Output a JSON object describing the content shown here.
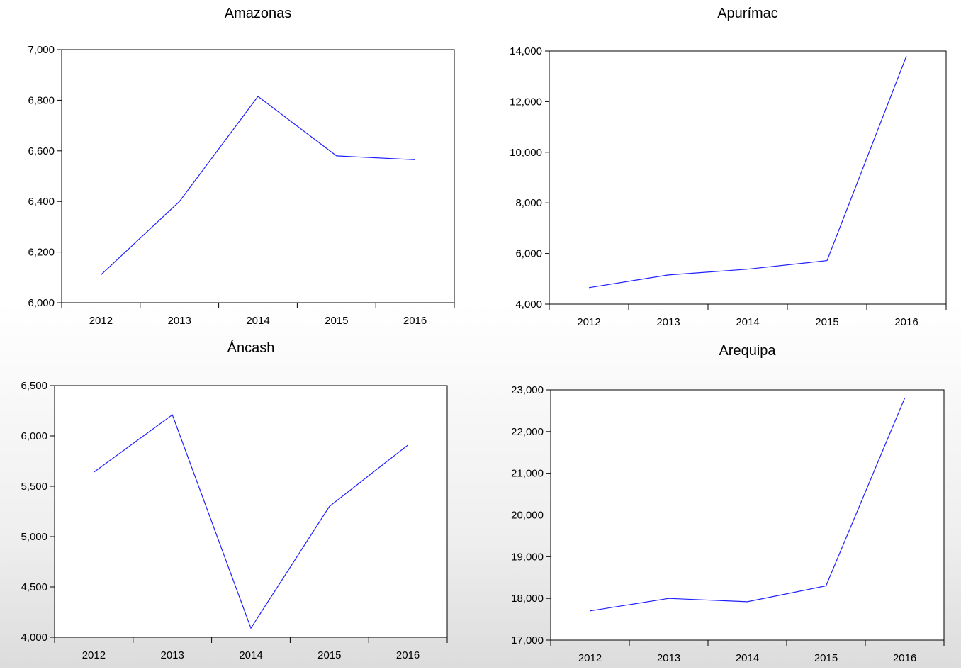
{
  "chart_data": [
    {
      "type": "line",
      "title": "Amazonas",
      "x": [
        "2012",
        "2013",
        "2014",
        "2015",
        "2016"
      ],
      "values": [
        6110,
        6400,
        6815,
        6580,
        6565
      ],
      "ylim": [
        6000,
        7000
      ],
      "yticks": [
        6000,
        6200,
        6400,
        6600,
        6800,
        7000
      ],
      "ytick_labels": [
        "6,000",
        "6,200",
        "6,400",
        "6,600",
        "6,800",
        "7,000"
      ],
      "xlabel": "",
      "ylabel": "",
      "grid": false,
      "line_color": "#2020ff"
    },
    {
      "type": "line",
      "title": "Apurímac",
      "x": [
        "2012",
        "2013",
        "2014",
        "2015",
        "2016"
      ],
      "values": [
        4650,
        5150,
        5380,
        5720,
        13800
      ],
      "ylim": [
        4000,
        14000
      ],
      "yticks": [
        4000,
        6000,
        8000,
        10000,
        12000,
        14000
      ],
      "ytick_labels": [
        "4,000",
        "6,000",
        "8,000",
        "10,000",
        "12,000",
        "14,000"
      ],
      "xlabel": "",
      "ylabel": "",
      "grid": false,
      "line_color": "#2020ff"
    },
    {
      "type": "line",
      "title": "Áncash",
      "x": [
        "2012",
        "2013",
        "2014",
        "2015",
        "2016"
      ],
      "values": [
        5640,
        6210,
        4090,
        5300,
        5910
      ],
      "ylim": [
        4000,
        6500
      ],
      "yticks": [
        4000,
        4500,
        5000,
        5500,
        6000,
        6500
      ],
      "ytick_labels": [
        "4,000",
        "4,500",
        "5,000",
        "5,500",
        "6,000",
        "6,500"
      ],
      "xlabel": "",
      "ylabel": "",
      "grid": false,
      "line_color": "#2020ff"
    },
    {
      "type": "line",
      "title": "Arequipa",
      "x": [
        "2012",
        "2013",
        "2014",
        "2015",
        "2016"
      ],
      "values": [
        17700,
        18000,
        17920,
        18300,
        22800
      ],
      "ylim": [
        17000,
        23000
      ],
      "yticks": [
        17000,
        18000,
        19000,
        20000,
        21000,
        22000,
        23000
      ],
      "ytick_labels": [
        "17,000",
        "18,000",
        "19,000",
        "20,000",
        "21,000",
        "22,000",
        "23,000"
      ],
      "xlabel": "",
      "ylabel": "",
      "grid": false,
      "line_color": "#2020ff"
    }
  ]
}
